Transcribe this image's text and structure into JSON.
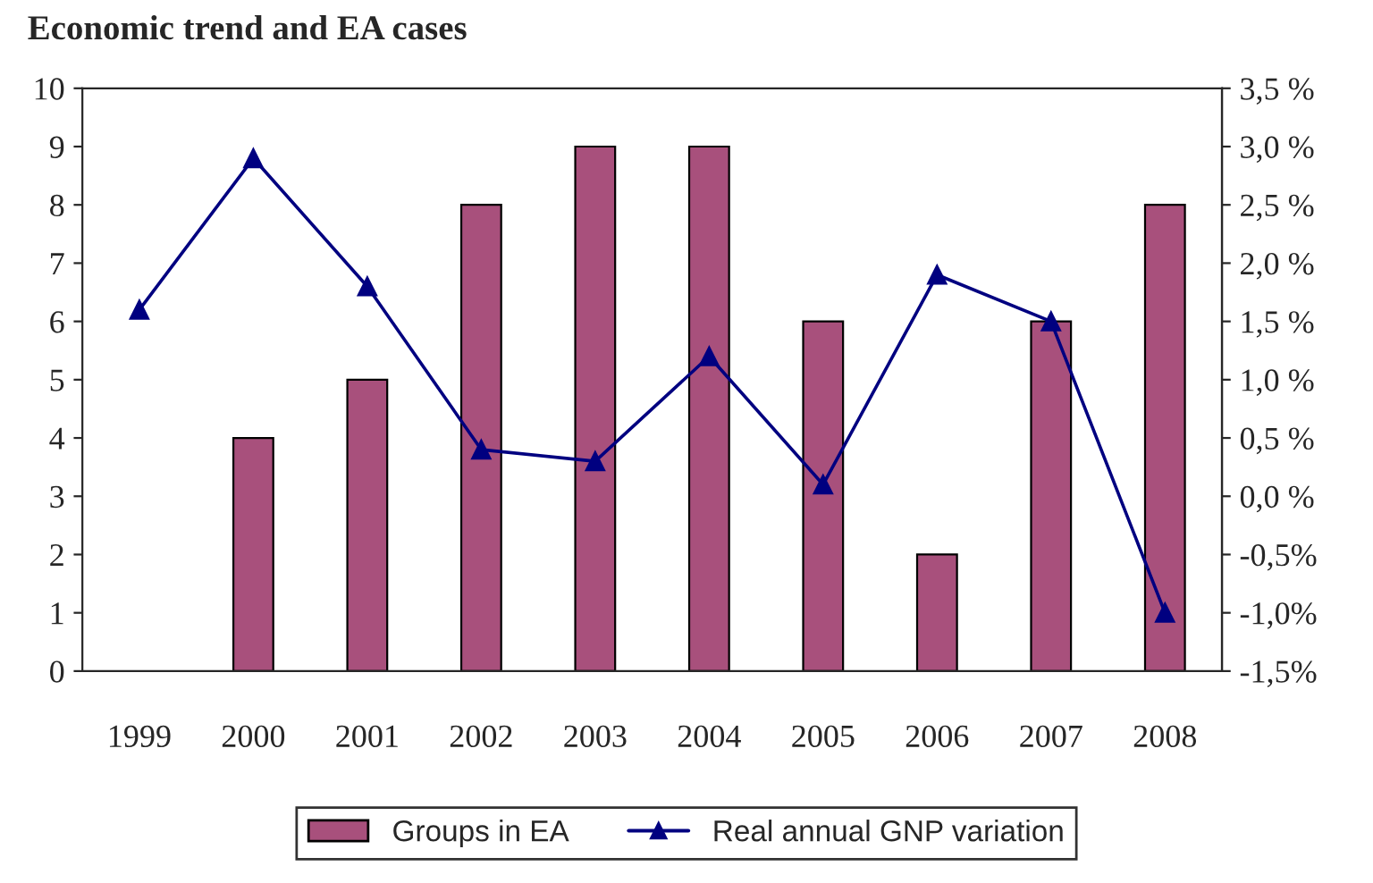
{
  "chart_data": {
    "type": "bar",
    "title": "Economic trend and EA cases",
    "categories": [
      "1999",
      "2000",
      "2001",
      "2002",
      "2003",
      "2004",
      "2005",
      "2006",
      "2007",
      "2008"
    ],
    "series": [
      {
        "name": "Groups in EA",
        "color": "#a8507c",
        "values": [
          null,
          4,
          5,
          8,
          9,
          9,
          6,
          2,
          6,
          8
        ]
      },
      {
        "name": "Real annual GNP variation",
        "type": "line",
        "axis": "y2",
        "color": "#000080",
        "marker": "triangle",
        "values": [
          1.6,
          2.9,
          1.8,
          0.4,
          0.3,
          1.2,
          0.1,
          1.9,
          1.5,
          -1.0
        ]
      }
    ],
    "ylim": [
      0,
      10
    ],
    "yticks": [
      0,
      1,
      2,
      3,
      4,
      5,
      6,
      7,
      8,
      9,
      10
    ],
    "y2lim": [
      -1.5,
      3.5
    ],
    "y2ticks": [
      {
        "value": -1.5,
        "label": "-1,5%"
      },
      {
        "value": -1.0,
        "label": "-1,0%"
      },
      {
        "value": -0.5,
        "label": "-0,5%"
      },
      {
        "value": 0.0,
        "label": "0,0 %"
      },
      {
        "value": 0.5,
        "label": "0,5 %"
      },
      {
        "value": 1.0,
        "label": "1,0 %"
      },
      {
        "value": 1.5,
        "label": "1,5 %"
      },
      {
        "value": 2.0,
        "label": "2,0 %"
      },
      {
        "value": 2.5,
        "label": "2,5 %"
      },
      {
        "value": 3.0,
        "label": "3,0 %"
      },
      {
        "value": 3.5,
        "label": "3,5 %"
      }
    ],
    "grid": false,
    "legend": "bottom"
  }
}
